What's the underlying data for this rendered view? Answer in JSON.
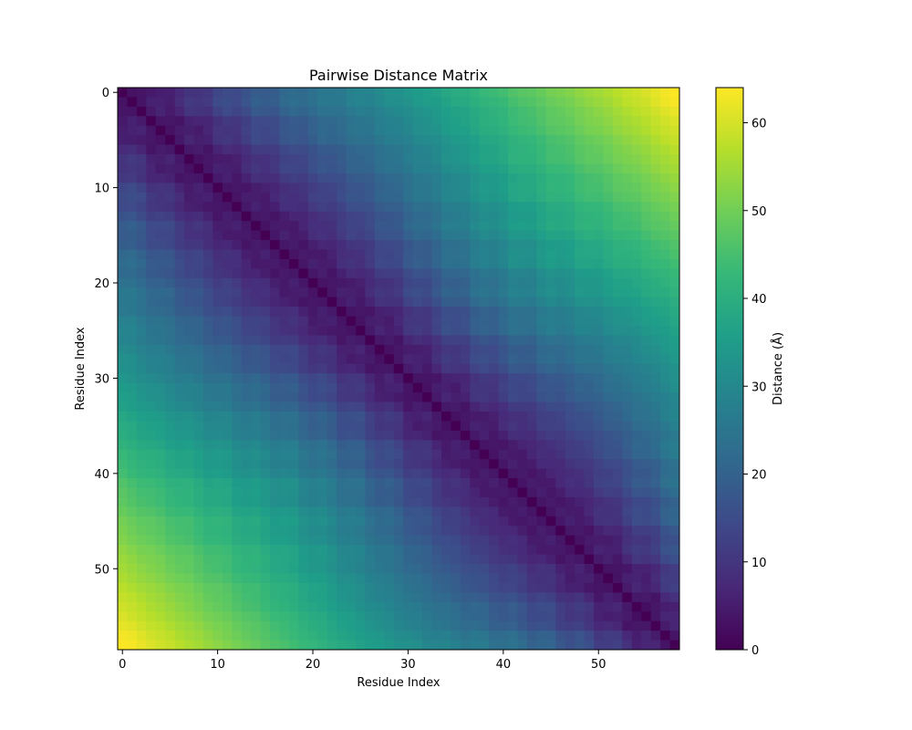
{
  "chart_data": {
    "type": "heatmap",
    "title": "Pairwise Distance Matrix",
    "xlabel": "Residue Index",
    "ylabel": "Residue Index",
    "n": 59,
    "xlim": [
      -0.5,
      58.5
    ],
    "ylim": [
      58.5,
      -0.5
    ],
    "x_ticks": [
      0,
      10,
      20,
      30,
      40,
      50
    ],
    "y_ticks": [
      0,
      10,
      20,
      30,
      40,
      50
    ],
    "colormap": "viridis",
    "colorbar": {
      "label": "Distance (Å)",
      "range": [
        0,
        64
      ],
      "ticks": [
        0,
        10,
        20,
        30,
        40,
        50,
        60
      ]
    },
    "values_note": "Symmetric distance matrix, zero on the diagonal, values rise with residue separation (approx. max 64 Å between residue 0 and 56–57).",
    "cell_values_generator": "value(i,j) approximated from residue positions along a helical backbone path; rounded to 0.1 Å",
    "viridis_stops": [
      "#440154",
      "#482878",
      "#3e4989",
      "#31688e",
      "#26828e",
      "#1f9e89",
      "#35b779",
      "#6ece58",
      "#b5de2b",
      "#fde725"
    ]
  }
}
